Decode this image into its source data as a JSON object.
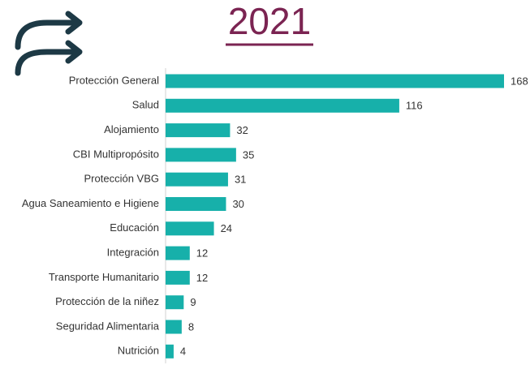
{
  "chart_data": {
    "type": "bar",
    "orientation": "horizontal",
    "title": "2021",
    "categories": [
      "Protección General",
      "Salud",
      "Alojamiento",
      "CBI Multipropósito",
      "Protección VBG",
      "Agua Saneamiento e Higiene",
      "Educación",
      "Integración",
      "Transporte Humanitario",
      "Protección de la niñez",
      "Seguridad Alimentaria",
      "Nutrición"
    ],
    "values": [
      168,
      116,
      32,
      35,
      31,
      30,
      24,
      12,
      12,
      9,
      8,
      4
    ],
    "color": "#17b0aa"
  }
}
